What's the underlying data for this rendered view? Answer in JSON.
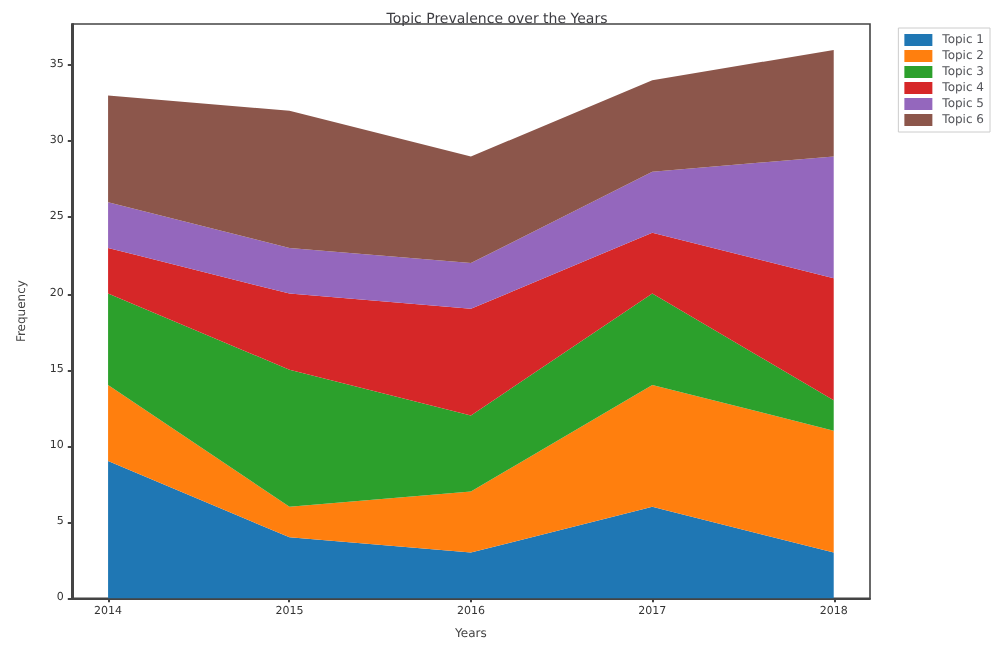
{
  "chart_data": {
    "type": "area",
    "stacked": true,
    "title": "Topic Prevalence over the Years",
    "xlabel": "Years",
    "ylabel": "Frequency",
    "x": [
      2014,
      2015,
      2016,
      2017,
      2018
    ],
    "series": [
      {
        "name": "Topic 1",
        "color": "#1f77b4",
        "values": [
          9,
          4,
          3,
          6,
          3
        ]
      },
      {
        "name": "Topic 2",
        "color": "#ff7f0e",
        "values": [
          5,
          2,
          4,
          8,
          8
        ]
      },
      {
        "name": "Topic 3",
        "color": "#2ca02c",
        "values": [
          6,
          9,
          5,
          6,
          2
        ]
      },
      {
        "name": "Topic 4",
        "color": "#d62728",
        "values": [
          3,
          5,
          7,
          4,
          8
        ]
      },
      {
        "name": "Topic 5",
        "color": "#9467bd",
        "values": [
          3,
          3,
          3,
          4,
          8
        ]
      },
      {
        "name": "Topic 6",
        "color": "#8c564b",
        "values": [
          7,
          9,
          7,
          6,
          7
        ]
      }
    ],
    "xlim": [
      2013.8,
      2018.2
    ],
    "xticks": [
      2014,
      2015,
      2016,
      2017,
      2018
    ],
    "ylim": [
      0,
      37.7
    ],
    "yticks": [
      0,
      5,
      10,
      15,
      20,
      25,
      30,
      35
    ],
    "legend": "top right",
    "grid": false
  }
}
